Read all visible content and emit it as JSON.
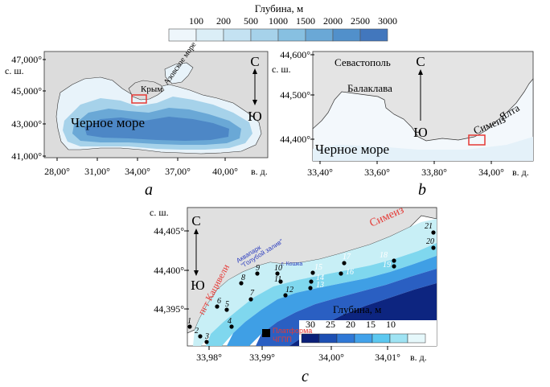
{
  "depth_legend_top": {
    "title": "Глубина, м",
    "ticks": [
      "100",
      "200",
      "500",
      "1000",
      "1500",
      "2000",
      "2500",
      "3000"
    ],
    "colors": [
      "#eef6fb",
      "#dbeef7",
      "#c4e2f2",
      "#a6d2ea",
      "#87c0e1",
      "#6aa8d6",
      "#5190cb",
      "#4277bd"
    ]
  },
  "panel_a": {
    "caption": "a",
    "lat_ticks": [
      "47,000°",
      "45,000°",
      "43,000°",
      "41,000°"
    ],
    "lat_unit": "с. ш.",
    "lon_ticks": [
      "28,00°",
      "31,00°",
      "34,00°",
      "37,00°",
      "40,00°"
    ],
    "lon_unit": "в. д.",
    "north_label": "С",
    "south_label": "Ю",
    "crimea_label": "Крым",
    "azov_label": "Азовское море",
    "sea_label": "Черное море"
  },
  "panel_b": {
    "caption": "b",
    "lat_ticks": [
      "44,600°",
      "44,500°",
      "44,400°"
    ],
    "lat_unit": "с. ш.",
    "lon_ticks": [
      "33,40°",
      "33,60°",
      "33,80°",
      "34,00°"
    ],
    "lon_unit": "в. д.",
    "north_label": "С",
    "south_label": "Ю",
    "sevastopol": "Севастополь",
    "balaklava": "Балаклава",
    "simeiz": "Симеиз",
    "yalta": "Ялта",
    "sea_label": "Черное море"
  },
  "panel_c": {
    "caption": "c",
    "lat_ticks": [
      "44,405°",
      "44,400°",
      "44,395°"
    ],
    "lat_unit": "с. ш.",
    "lon_ticks": [
      "33,98°",
      "33,99°",
      "34,00°",
      "34,01°"
    ],
    "lon_unit": "в. д.",
    "north_label": "С",
    "south_label": "Ю",
    "katsiveli": "пгт Кацивели",
    "simeiz": "Симеиз",
    "aquapark_1": "Аквапарк",
    "aquapark_2": "\"Голубой залив\"",
    "koshka": "г. Кошка",
    "platform_1": "Платформа",
    "platform_2": "ЧГПП",
    "legend_title": "Глубина, м",
    "legend_ticks": [
      "30",
      "25",
      "20",
      "15",
      "10"
    ],
    "legend_colors": [
      "#0b1f78",
      "#1d4fb3",
      "#2f78d6",
      "#42a2ea",
      "#5cc8f0",
      "#9fe3f3",
      "#e6f8fb"
    ],
    "stations": [
      "1",
      "2",
      "3",
      "4",
      "5",
      "6",
      "7",
      "8",
      "9",
      "10",
      "11",
      "12",
      "13",
      "14",
      "15",
      "16",
      "17",
      "18",
      "19",
      "20",
      "21"
    ]
  }
}
